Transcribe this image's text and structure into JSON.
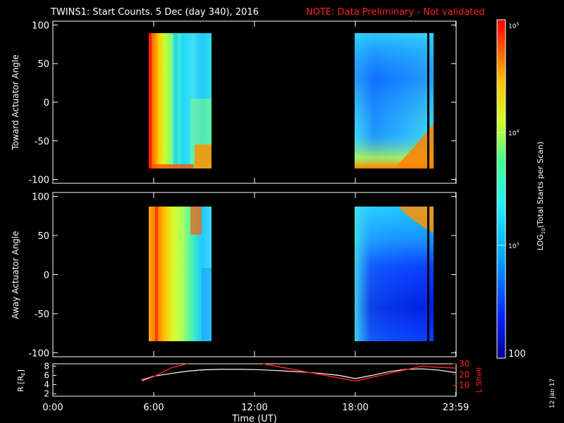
{
  "header": {
    "title": "TWINS1: Start Counts.  5 Dec (day 340), 2016",
    "note": "NOTE: Data Preliminary - Not validated"
  },
  "footer": {
    "stamp": "12 Jan 17"
  },
  "colors": {
    "note": "#ff2020",
    "lshell": "#ff2020",
    "radius": "#ffffff",
    "axis": "#ffffff",
    "background": "#000000"
  },
  "chart_data": [
    {
      "type": "heatmap",
      "name": "toward",
      "ylabel": "Toward Actuator Angle",
      "xlim": [
        0,
        24
      ],
      "ylim": [
        -105,
        105
      ],
      "yticks": [
        100,
        50,
        0,
        -50,
        -100
      ],
      "coverage": [
        [
          5.8,
          9.3
        ],
        [
          18.0,
          23.0
        ]
      ],
      "angle_range": [
        -88,
        88
      ]
    },
    {
      "type": "heatmap",
      "name": "away",
      "ylabel": "Away Actuator Angle",
      "xlim": [
        0,
        24
      ],
      "ylim": [
        -105,
        105
      ],
      "yticks": [
        100,
        50,
        0,
        -50,
        -100
      ],
      "coverage": [
        [
          5.8,
          9.3
        ],
        [
          18.0,
          23.0
        ]
      ],
      "angle_range": [
        -88,
        88
      ]
    },
    {
      "type": "line",
      "name": "orbit",
      "xlabel": "Time (UT)",
      "xlim": [
        0,
        24
      ],
      "xticks": [
        0,
        6,
        12,
        18,
        23.98
      ],
      "xtick_labels": [
        "0:00",
        "6:00",
        "12:00",
        "18:00",
        "23:59"
      ],
      "ylabel_left": "R [R",
      "ylabel_left_sub": "E",
      "ylabel_left_close": "]",
      "yticks_left": [
        2,
        4,
        6,
        8
      ],
      "ylim_left": [
        1.5,
        8.5
      ],
      "ylabel_right": "L Shell",
      "yticks_right": [
        10,
        20,
        30
      ],
      "yticks_right_labels": [
        "10",
        "20",
        "30"
      ],
      "ylim_right": [
        0,
        30
      ],
      "series": [
        {
          "axis": "left",
          "x": [
            5.3,
            6,
            7,
            8,
            9,
            10,
            11,
            12,
            13,
            14,
            15,
            16,
            17,
            18,
            19,
            20,
            21,
            22,
            23,
            23.98
          ],
          "y": [
            5.0,
            5.8,
            6.4,
            6.9,
            7.2,
            7.3,
            7.3,
            7.25,
            7.1,
            6.9,
            6.7,
            6.4,
            6.0,
            5.3,
            6.0,
            6.8,
            7.3,
            7.4,
            7.1,
            6.6
          ]
        },
        {
          "axis": "right",
          "x": [
            5.3,
            6,
            7,
            8.0,
            8.2,
            12.3,
            12.5,
            18,
            22,
            22.6,
            23.98
          ],
          "y": [
            14,
            18,
            26,
            31,
            null,
            null,
            30,
            14,
            28,
            27,
            26
          ]
        }
      ]
    },
    {
      "type": "colorbar",
      "label_pre": "LOG",
      "label_sub": "10",
      "label_post": "(Total Starts per Scan)",
      "scale": "log",
      "range": [
        100,
        100000
      ],
      "ticks": [
        {
          "value": 100,
          "label": "100"
        },
        {
          "value": 1000,
          "base": "10",
          "exp": "3"
        },
        {
          "value": 10000,
          "base": "10",
          "exp": "4"
        },
        {
          "value": 100000,
          "base": "10",
          "exp": "5"
        }
      ]
    }
  ]
}
